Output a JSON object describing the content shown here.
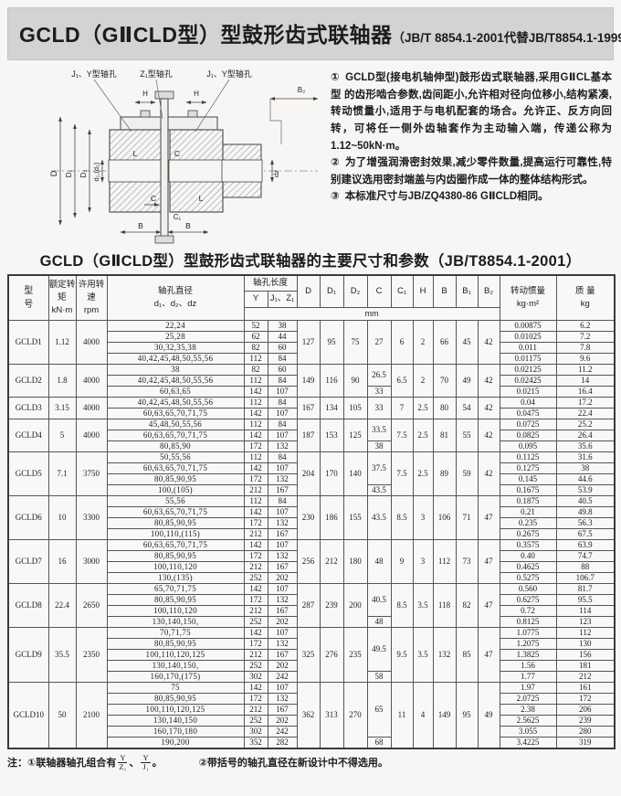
{
  "header": {
    "title": "GCLD（GⅡCLD型）型鼓形齿式联轴器",
    "standard": "（JB/T 8854.1-2001代替JB/T8854.1-1999）"
  },
  "diagram": {
    "top_label_left": "J₁、Y型轴孔",
    "top_label_mid": "Z₁型轴孔",
    "top_label_right": "J₁、Y型轴孔",
    "dim_H": "H",
    "dim_B2": "B₂",
    "dim_D": "D",
    "dim_D1": "D₁",
    "dim_D2": "D₂",
    "dim_d12": "d₁,(d₂)",
    "dim_dz": "dz",
    "dim_L": "L",
    "dim_C": "C",
    "dim_C1": "C₁",
    "dim_B": "B"
  },
  "notes": [
    {
      "num": "①",
      "text": "GCLD型(接电机轴伸型)鼓形齿式联轴器,采用GⅡCL基本型 的齿形啮合参数,齿间距小,允许相对径向位移小,结构紧凑,转动惯量小,适用于与电机配套的场合。允许正、反方向回转，可将任一侧外齿轴套作为主动输入端，传递公称为1.12~50kN·m。"
    },
    {
      "num": "②",
      "text": "为了增强润滑密封效果,减少零件数量,提高运行可靠性,特别建议选用密封端盖与内齿圈作成一体的整体结构形式。"
    },
    {
      "num": "③",
      "text": "本标准尺寸与JB/ZQ4380-86 GⅡCLD相同。"
    }
  ],
  "table_title": "GCLD（GⅡCLD型）型鼓形齿式联轴器的主要尺寸和参数（JB/T8854.1-2001）",
  "table": {
    "headers": {
      "model": "型\n号",
      "torque": "额定转矩\nkN·m",
      "speed": "许用转速\nrpm",
      "bore_dia": "轴孔直径\nd₁、d₂、dz",
      "bore_len": "轴孔长度",
      "y": "Y",
      "jz": "J₁、Z₁",
      "dims": [
        "D",
        "D₁",
        "D₂",
        "C",
        "C₁",
        "H",
        "B",
        "B₁",
        "B₂"
      ],
      "mm": "mm",
      "inertia": "转动惯量\nkg·m²",
      "mass": "质  量\nkg"
    },
    "groups": [
      {
        "model": "GCLD1",
        "torque": "1.12",
        "speed": "4000",
        "D": "127",
        "D1": "95",
        "D2": "75",
        "C": [
          {
            "v": "27",
            "span": 4
          }
        ],
        "C1": "6",
        "H": "2",
        "B": "66",
        "B1": "45",
        "B2": "42",
        "rows": [
          {
            "bore": "22,24",
            "y": "52",
            "jz": "38",
            "inertia": "0.00875",
            "mass": "6.2"
          },
          {
            "bore": "25,28",
            "y": "62",
            "jz": "44",
            "inertia": "0.01025",
            "mass": "7.2"
          },
          {
            "bore": "30,32,35,38",
            "y": "82",
            "jz": "60",
            "inertia": "0.011",
            "mass": "7.8"
          },
          {
            "bore": "40,42,45,48,50,55,56",
            "y": "112",
            "jz": "84",
            "inertia": "0.01175",
            "mass": "9.6"
          }
        ]
      },
      {
        "model": "GCLD2",
        "torque": "1.8",
        "speed": "4000",
        "D": "149",
        "D1": "116",
        "D2": "90",
        "C": [
          {
            "v": "26.5",
            "span": 2
          },
          {
            "v": "33",
            "span": 1
          }
        ],
        "C1": "6.5",
        "H": "2",
        "B": "70",
        "B1": "49",
        "B2": "42",
        "rows": [
          {
            "bore": "38",
            "y": "82",
            "jz": "60",
            "inertia": "0.02125",
            "mass": "11.2"
          },
          {
            "bore": "40,42,45,48,50,55,56",
            "y": "112",
            "jz": "84",
            "inertia": "0.02425",
            "mass": "14"
          },
          {
            "bore": "60,63,65",
            "y": "142",
            "jz": "107",
            "inertia": "0.0215",
            "mass": "16.4"
          }
        ]
      },
      {
        "model": "GCLD3",
        "torque": "3.15",
        "speed": "4000",
        "D": "167",
        "D1": "134",
        "D2": "105",
        "C": [
          {
            "v": "33",
            "span": 2
          }
        ],
        "C1": "7",
        "H": "2.5",
        "B": "80",
        "B1": "54",
        "B2": "42",
        "rows": [
          {
            "bore": "40,42,45,48,50,55,56",
            "y": "112",
            "jz": "84",
            "inertia": "0.04",
            "mass": "17.2"
          },
          {
            "bore": "60,63,65,70,71,75",
            "y": "142",
            "jz": "107",
            "inertia": "0.0475",
            "mass": "22.4"
          }
        ]
      },
      {
        "model": "GCLD4",
        "torque": "5",
        "speed": "4000",
        "D": "187",
        "D1": "153",
        "D2": "125",
        "C": [
          {
            "v": "33.5",
            "span": 2
          },
          {
            "v": "38",
            "span": 1
          }
        ],
        "C1": "7.5",
        "H": "2.5",
        "B": "81",
        "B1": "55",
        "B2": "42",
        "rows": [
          {
            "bore": "45,48,50,55,56",
            "y": "112",
            "jz": "84",
            "inertia": "0.0725",
            "mass": "25.2"
          },
          {
            "bore": "60,63,65,70,71,75",
            "y": "142",
            "jz": "107",
            "inertia": "0.0825",
            "mass": "26.4"
          },
          {
            "bore": "80,85,90",
            "y": "172",
            "jz": "132",
            "inertia": "0.095",
            "mass": "35.6"
          }
        ]
      },
      {
        "model": "GCLD5",
        "torque": "7.1",
        "speed": "3750",
        "D": "204",
        "D1": "170",
        "D2": "140",
        "C": [
          {
            "v": "37.5",
            "span": 3
          },
          {
            "v": "43.5",
            "span": 1
          }
        ],
        "C1": "7.5",
        "H": "2.5",
        "B": "89",
        "B1": "59",
        "B2": "42",
        "rows": [
          {
            "bore": "50,55,56",
            "y": "112",
            "jz": "84",
            "inertia": "0.1125",
            "mass": "31.6"
          },
          {
            "bore": "60,63,65,70,71,75",
            "y": "142",
            "jz": "107",
            "inertia": "0.1275",
            "mass": "38"
          },
          {
            "bore": "80,85,90,95",
            "y": "172",
            "jz": "132",
            "inertia": "0.145",
            "mass": "44.6"
          },
          {
            "bore": "100,(105)",
            "y": "212",
            "jz": "167",
            "inertia": "0.1675",
            "mass": "53.9"
          }
        ]
      },
      {
        "model": "GCLD6",
        "torque": "10",
        "speed": "3300",
        "D": "230",
        "D1": "186",
        "D2": "155",
        "C": [
          {
            "v": "43.5",
            "span": 4
          }
        ],
        "C1": "8.5",
        "H": "3",
        "B": "106",
        "B1": "71",
        "B2": "47",
        "rows": [
          {
            "bore": "55,56",
            "y": "112",
            "jz": "84",
            "inertia": "0.1875",
            "mass": "40.5"
          },
          {
            "bore": "60,63,65,70,71,75",
            "y": "142",
            "jz": "107",
            "inertia": "0.21",
            "mass": "49.8"
          },
          {
            "bore": "80,85,90,95",
            "y": "172",
            "jz": "132",
            "inertia": "0.235",
            "mass": "56.3"
          },
          {
            "bore": "100,110,(115)",
            "y": "212",
            "jz": "167",
            "inertia": "0.2675",
            "mass": "67.5"
          }
        ]
      },
      {
        "model": "GCLD7",
        "torque": "16",
        "speed": "3000",
        "D": "256",
        "D1": "212",
        "D2": "180",
        "C": [
          {
            "v": "48",
            "span": 4
          }
        ],
        "C1": "9",
        "H": "3",
        "B": "112",
        "B1": "73",
        "B2": "47",
        "rows": [
          {
            "bore": "60,63,65,70,71,75",
            "y": "142",
            "jz": "107",
            "inertia": "0.3575",
            "mass": "63.9"
          },
          {
            "bore": "80,85,90,95",
            "y": "172",
            "jz": "132",
            "inertia": "0.40",
            "mass": "74.7"
          },
          {
            "bore": "100,110,120",
            "y": "212",
            "jz": "167",
            "inertia": "0.4625",
            "mass": "88"
          },
          {
            "bore": "130,(135)",
            "y": "252",
            "jz": "202",
            "inertia": "0.5275",
            "mass": "106.7"
          }
        ]
      },
      {
        "model": "GCLD8",
        "torque": "22.4",
        "speed": "2650",
        "D": "287",
        "D1": "239",
        "D2": "200",
        "C": [
          {
            "v": "40.5",
            "span": 3
          },
          {
            "v": "48",
            "span": 1
          }
        ],
        "C1": "8.5",
        "H": "3.5",
        "B": "118",
        "B1": "82",
        "B2": "47",
        "rows": [
          {
            "bore": "65,70,71,75",
            "y": "142",
            "jz": "107",
            "inertia": "0.560",
            "mass": "81.7"
          },
          {
            "bore": "80,85,90,95",
            "y": "172",
            "jz": "132",
            "inertia": "0.6275",
            "mass": "95.5"
          },
          {
            "bore": "100,110,120",
            "y": "212",
            "jz": "167",
            "inertia": "0.72",
            "mass": "114"
          },
          {
            "bore": "130,140,150,",
            "y": "252",
            "jz": "202",
            "inertia": "0.8125",
            "mass": "123"
          }
        ]
      },
      {
        "model": "GCLD9",
        "torque": "35.5",
        "speed": "2350",
        "D": "325",
        "D1": "276",
        "D2": "235",
        "C": [
          {
            "v": "49.5",
            "span": 4
          },
          {
            "v": "58",
            "span": 1
          }
        ],
        "C1": "9.5",
        "H": "3.5",
        "B": "132",
        "B1": "85",
        "B2": "47",
        "rows": [
          {
            "bore": "70,71,75",
            "y": "142",
            "jz": "107",
            "inertia": "1.0775",
            "mass": "112"
          },
          {
            "bore": "80,85,90,95",
            "y": "172",
            "jz": "132",
            "inertia": "1.2075",
            "mass": "130"
          },
          {
            "bore": "100,110,120,125",
            "y": "212",
            "jz": "167",
            "inertia": "1.3825",
            "mass": "156"
          },
          {
            "bore": "130,140,150,",
            "y": "252",
            "jz": "202",
            "inertia": "1.56",
            "mass": "181"
          },
          {
            "bore": "160,170,(175)",
            "y": "302",
            "jz": "242",
            "inertia": "1.77",
            "mass": "212"
          }
        ]
      },
      {
        "model": "GCLD10",
        "torque": "50",
        "speed": "2100",
        "D": "362",
        "D1": "313",
        "D2": "270",
        "C": [
          {
            "v": "65",
            "span": 5
          },
          {
            "v": "68",
            "span": 1
          }
        ],
        "C1": "11",
        "H": "4",
        "B": "149",
        "B1": "95",
        "B2": "49",
        "rows": [
          {
            "bore": "75",
            "y": "142",
            "jz": "107",
            "inertia": "1.97",
            "mass": "161"
          },
          {
            "bore": "80,85,90,95",
            "y": "172",
            "jz": "132",
            "inertia": "2.0725",
            "mass": "172"
          },
          {
            "bore": "100,110,120,125",
            "y": "212",
            "jz": "167",
            "inertia": "2.38",
            "mass": "206"
          },
          {
            "bore": "130,140,150",
            "y": "252",
            "jz": "202",
            "inertia": "2.5625",
            "mass": "239"
          },
          {
            "bore": "160,170,180",
            "y": "302",
            "jz": "242",
            "inertia": "3.055",
            "mass": "280"
          },
          {
            "bore": "190,200",
            "y": "352",
            "jz": "282",
            "inertia": "3.4225",
            "mass": "319"
          }
        ]
      }
    ]
  },
  "footnote": {
    "prefix": "注：①联轴器轴孔组合有",
    "f1_num": "Y",
    "f1_den": "Z₁",
    "sep": "、",
    "f2_num": "Y",
    "f2_den": "J₁",
    "period": "。",
    "second": "②带括号的轴孔直径在新设计中不得选用。"
  }
}
